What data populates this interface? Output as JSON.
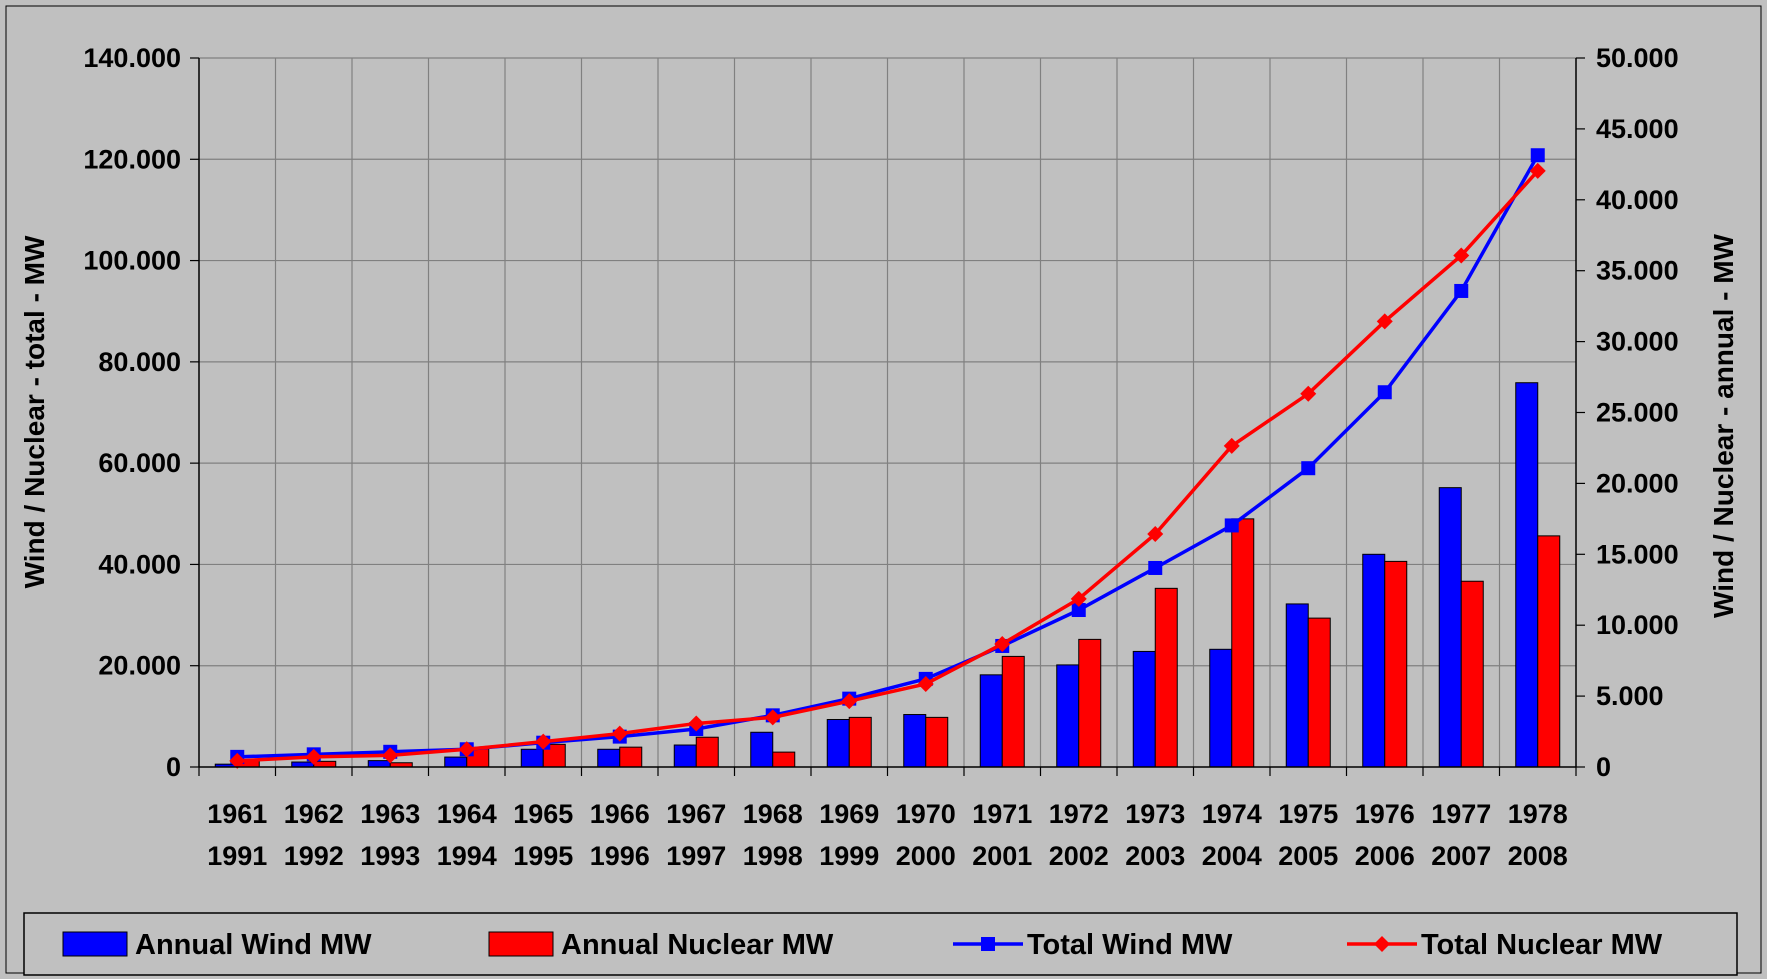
{
  "chart_data": {
    "type": "bar",
    "categories": [
      [
        "1961",
        "1991"
      ],
      [
        "1962",
        "1992"
      ],
      [
        "1963",
        "1993"
      ],
      [
        "1964",
        "1994"
      ],
      [
        "1965",
        "1995"
      ],
      [
        "1966",
        "1996"
      ],
      [
        "1967",
        "1997"
      ],
      [
        "1968",
        "1998"
      ],
      [
        "1969",
        "1999"
      ],
      [
        "1970",
        "2000"
      ],
      [
        "1971",
        "2001"
      ],
      [
        "1972",
        "2002"
      ],
      [
        "1973",
        "2003"
      ],
      [
        "1974",
        "2004"
      ],
      [
        "1975",
        "2005"
      ],
      [
        "1976",
        "2006"
      ],
      [
        "1977",
        "2007"
      ],
      [
        "1978",
        "2008"
      ]
    ],
    "ylabel_left": "Wind / Nuclear - total - MW",
    "ylabel_right": "Wind / Nuclear - annual - MW",
    "ylim_left": [
      0,
      140000
    ],
    "ylim_right": [
      0,
      50000
    ],
    "yticks_left": [
      "0",
      "20.000",
      "40.000",
      "60.000",
      "80.000",
      "100.000",
      "120.000",
      "140.000"
    ],
    "yticks_right": [
      "0",
      "5.000",
      "10.000",
      "15.000",
      "20.000",
      "25.000",
      "30.000",
      "35.000",
      "40.000",
      "45.000",
      "50.000"
    ],
    "grid": true,
    "legend_position": "bottom",
    "series": [
      {
        "name": "Annual Wind MW",
        "kind": "bar",
        "axis": "right",
        "color": "#0000ff",
        "values": [
          200,
          350,
          450,
          700,
          1250,
          1250,
          1550,
          2450,
          3350,
          3700,
          6500,
          7200,
          8150,
          8300,
          11500,
          15000,
          19700,
          27100
        ]
      },
      {
        "name": "Annual Nuclear MW",
        "kind": "bar",
        "axis": "right",
        "color": "#ff0000",
        "values": [
          500,
          400,
          300,
          1300,
          1600,
          1400,
          2100,
          1050,
          3500,
          3500,
          7800,
          9000,
          12600,
          17500,
          10500,
          14500,
          13100,
          16300
        ]
      },
      {
        "name": "Total Wind MW",
        "kind": "line",
        "axis": "left",
        "color": "#0000ff",
        "marker": "square",
        "values": [
          2000,
          2500,
          3000,
          3500,
          4800,
          6000,
          7500,
          10200,
          13500,
          17400,
          23900,
          31000,
          39300,
          47700,
          59000,
          74000,
          94000,
          120800
        ]
      },
      {
        "name": "Total Nuclear MW",
        "kind": "line",
        "axis": "left",
        "color": "#ff0000",
        "marker": "diamond",
        "values": [
          1200,
          2000,
          2300,
          3500,
          5000,
          6600,
          8600,
          9800,
          13000,
          16400,
          24300,
          33200,
          46000,
          63400,
          73700,
          88000,
          101000,
          117700
        ]
      }
    ]
  }
}
